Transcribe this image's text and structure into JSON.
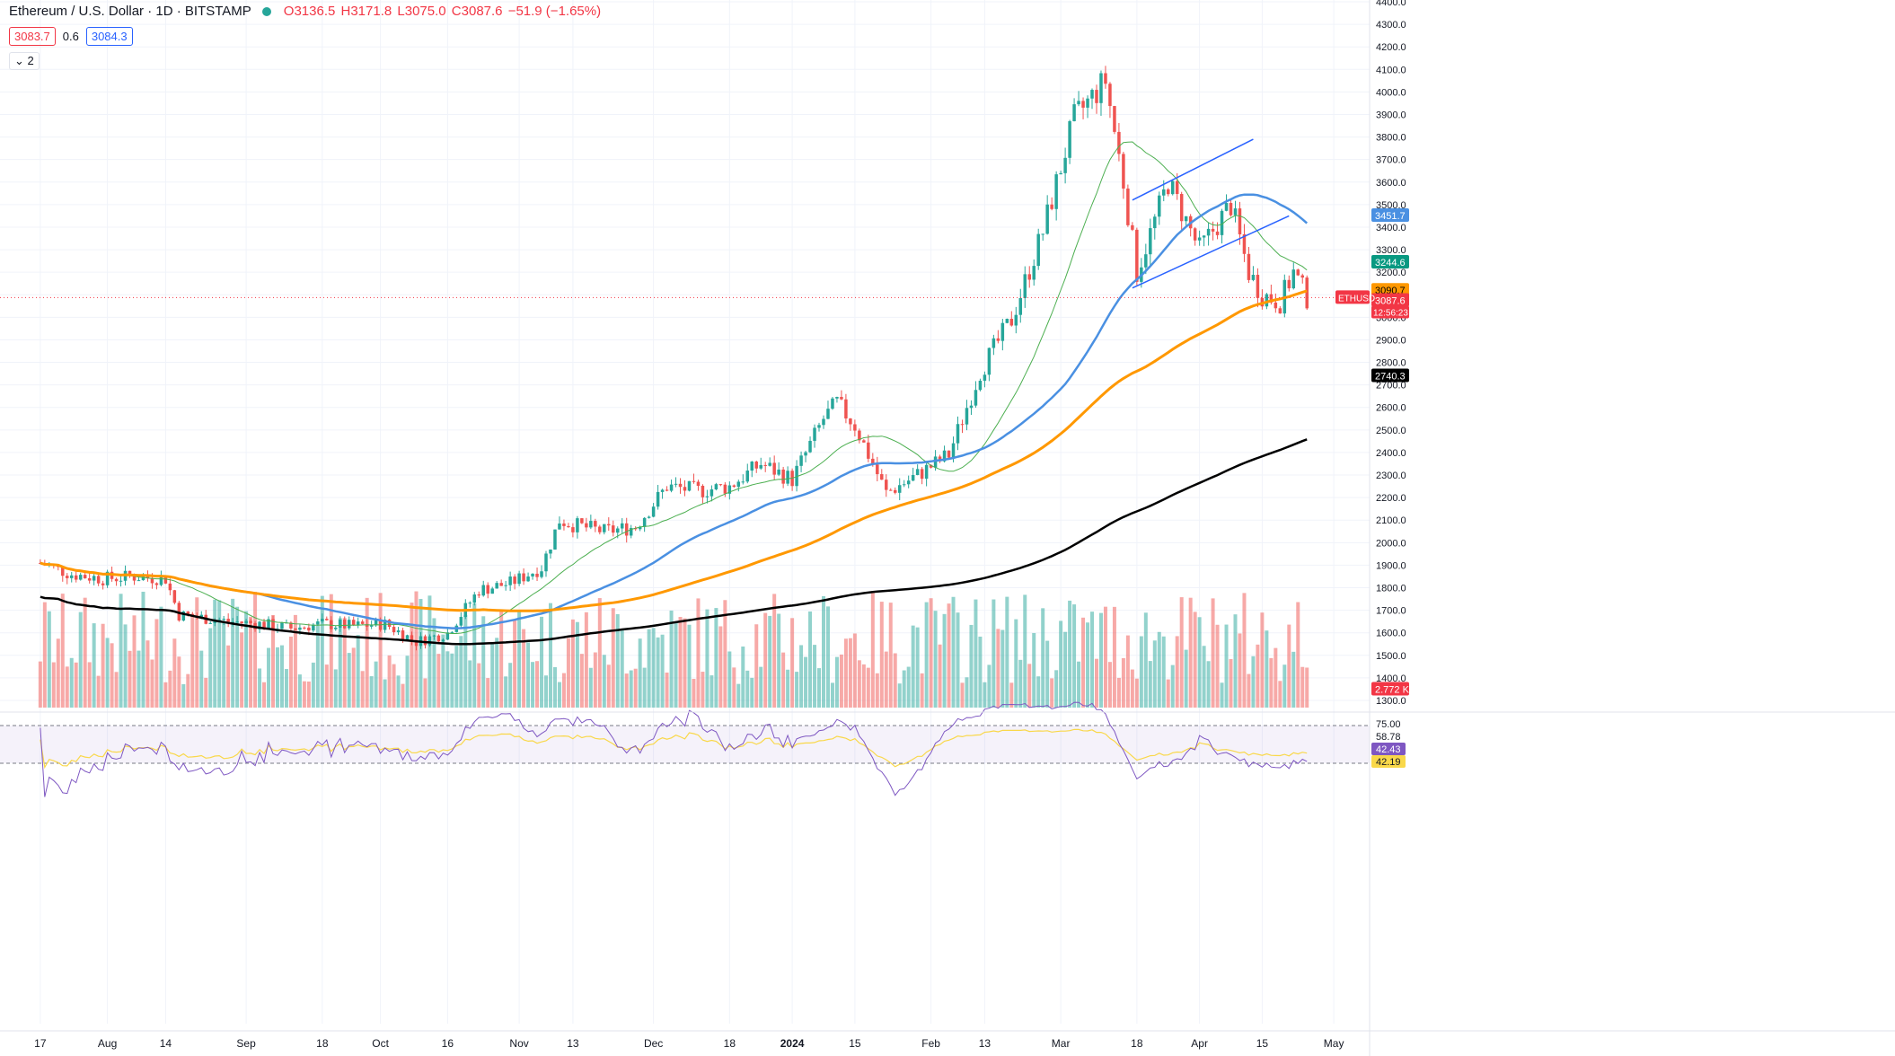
{
  "header": {
    "symbol": "Ethereum / U.S. Dollar · 1D · BITSTAMP",
    "ohlc": {
      "o": "O3136.5",
      "h": "H3171.8",
      "l": "L3075.0",
      "c": "C3087.6",
      "chg": "−51.9 (−1.65%)"
    },
    "bid": "3083.7",
    "spread": "0.6",
    "ask": "3084.3",
    "indicator_count": "2"
  },
  "colors": {
    "up": "#26a69a",
    "down": "#ef5350",
    "ma_fast": "#4caf50",
    "ma_mid": "#4a90e2",
    "ma_slow": "#ff9800",
    "ma_long": "#000000",
    "channel": "#2962ff",
    "rsi": "#7e57c2",
    "rsi_ma": "#f9d84a"
  },
  "chart_data": {
    "type": "candlestick",
    "title": "Ethereum / U.S. Dollar · 1D · BITSTAMP",
    "ylim": [
      1250,
      4400
    ],
    "y_ticks": [
      "1300.0",
      "1400.0",
      "1500.0",
      "1600.0",
      "1700.0",
      "1800.0",
      "1900.0",
      "2000.0",
      "2100.0",
      "2200.0",
      "2300.0",
      "2400.0",
      "2500.0",
      "2600.0",
      "2700.0",
      "2800.0",
      "2900.0",
      "3000.0",
      "3100.0",
      "3200.0",
      "3300.0",
      "3400.0",
      "3500.0",
      "3600.0",
      "3700.0",
      "3800.0",
      "3900.0",
      "4000.0",
      "4100.0",
      "4200.0",
      "4300.0",
      "4400.0"
    ],
    "x_labels": [
      "17",
      "Aug",
      "14",
      "Sep",
      "18",
      "Oct",
      "16",
      "Nov",
      "13",
      "Dec",
      "18",
      "2024",
      "15",
      "Feb",
      "13",
      "Mar",
      "18",
      "Apr",
      "15",
      "May"
    ],
    "close_points": [
      [
        "2023-07-17",
        1910
      ],
      [
        "2023-07-24",
        1860
      ],
      [
        "2023-07-31",
        1840
      ],
      [
        "2023-08-07",
        1850
      ],
      [
        "2023-08-14",
        1840
      ],
      [
        "2023-08-17",
        1680
      ],
      [
        "2023-08-21",
        1670
      ],
      [
        "2023-08-28",
        1650
      ],
      [
        "2023-09-04",
        1640
      ],
      [
        "2023-09-11",
        1620
      ],
      [
        "2023-09-18",
        1640
      ],
      [
        "2023-09-25",
        1630
      ],
      [
        "2023-10-02",
        1640
      ],
      [
        "2023-10-09",
        1560
      ],
      [
        "2023-10-16",
        1600
      ],
      [
        "2023-10-23",
        1790
      ],
      [
        "2023-10-30",
        1820
      ],
      [
        "2023-11-06",
        1890
      ],
      [
        "2023-11-10",
        2100
      ],
      [
        "2023-11-13",
        2080
      ],
      [
        "2023-11-20",
        2050
      ],
      [
        "2023-11-27",
        2070
      ],
      [
        "2023-12-04",
        2250
      ],
      [
        "2023-12-11",
        2230
      ],
      [
        "2023-12-18",
        2250
      ],
      [
        "2023-12-25",
        2350
      ],
      [
        "2024-01-01",
        2280
      ],
      [
        "2024-01-08",
        2550
      ],
      [
        "2024-01-11",
        2620
      ],
      [
        "2024-01-15",
        2520
      ],
      [
        "2024-01-22",
        2220
      ],
      [
        "2024-01-29",
        2300
      ],
      [
        "2024-02-05",
        2390
      ],
      [
        "2024-02-12",
        2760
      ],
      [
        "2024-02-19",
        2990
      ],
      [
        "2024-02-26",
        3380
      ],
      [
        "2024-03-04",
        3880
      ],
      [
        "2024-03-11",
        4050
      ],
      [
        "2024-03-15",
        3600
      ],
      [
        "2024-03-18",
        3200
      ],
      [
        "2024-03-25",
        3600
      ],
      [
        "2024-04-01",
        3300
      ],
      [
        "2024-04-08",
        3500
      ],
      [
        "2024-04-12",
        3200
      ],
      [
        "2024-04-15",
        3100
      ],
      [
        "2024-04-19",
        3070
      ],
      [
        "2024-04-22",
        3200
      ],
      [
        "2024-04-25",
        3087.6
      ]
    ],
    "moving_averages": [
      {
        "name": "MA fast",
        "color": "#4caf50",
        "last": null
      },
      {
        "name": "MA 50",
        "color": "#4a90e2",
        "last": "3451.7"
      },
      {
        "name": "MA 100",
        "color": "#ff9800",
        "last": "3090.7"
      },
      {
        "name": "MA 200",
        "color": "#000000",
        "last": "2740.3"
      }
    ],
    "last_price": "3087.6",
    "countdown": "12:56:23",
    "green_tag": "3244.6",
    "volume_tag": "2.772 K",
    "rsi": {
      "levels": [
        "75.00",
        "58.78",
        "42.43",
        "42.19"
      ],
      "value": "42.43",
      "ma_value": "42.19"
    }
  },
  "labels": {
    "ethusd": "ETHUSD"
  }
}
